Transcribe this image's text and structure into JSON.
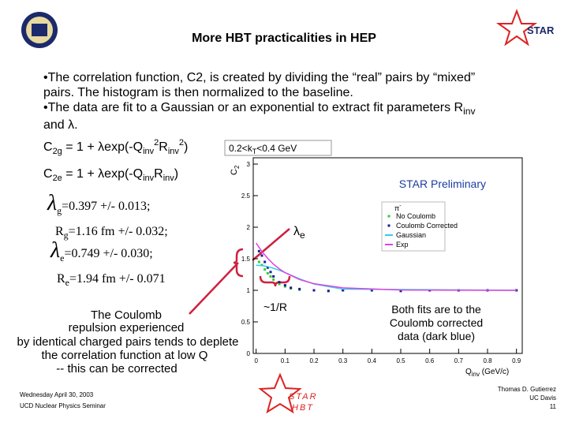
{
  "header": {
    "title": "More HBT practicalities in HEP"
  },
  "bullets": [
    [
      "•The correlation function, C2, is created by dividing the “real” pairs by “mixed”",
      "pairs.  The histogram is then normalized to the baseline."
    ],
    [
      "•The data are fit to a Gaussian or an exponential to extract fit parameters R",
      "inv",
      "and λ."
    ]
  ],
  "formulas": [
    [
      "C",
      "2g",
      " = 1 + λexp(-Q",
      "inv",
      "2",
      "R",
      "inv",
      "2",
      ")"
    ],
    [
      "C",
      "2e",
      " = 1 + λexp(-Q",
      "inv",
      "R",
      "inv",
      ")"
    ]
  ],
  "fit_results": [
    [
      "λ",
      "g",
      "=0.397 +/- 0.013;"
    ],
    [
      "R",
      "g",
      "=1.16 fm +/- 0.032;"
    ],
    [
      "λ",
      "e",
      "=0.749 +/- 0.030;"
    ],
    [
      "R",
      "e",
      "=1.94 fm +/- 0.071"
    ]
  ],
  "plot": {
    "type": "scatter",
    "title": [
      "0.2<k",
      "T",
      "<0.4 GeV"
    ],
    "ylabel": [
      "C",
      "2"
    ],
    "xlabel": [
      "Q",
      "inv",
      " (GeV/c)"
    ],
    "preliminary": "STAR Preliminary",
    "legend_particle": [
      "π",
      "-"
    ],
    "xlim": [
      -0.01,
      0.92
    ],
    "ylim": [
      0,
      3.1
    ],
    "xticks": [
      0,
      0.1,
      0.2,
      0.3,
      0.4,
      0.5,
      0.6,
      0.7,
      0.8,
      0.9
    ],
    "yticks": [
      0,
      0.5,
      1,
      1.5,
      2,
      2.5,
      3
    ],
    "series": [
      {
        "name": "No Coulomb",
        "color": "#33cc33",
        "style": "points",
        "x": [
          0.01,
          0.02,
          0.03,
          0.04,
          0.05,
          0.06,
          0.08,
          0.1,
          0.12,
          0.15,
          0.2,
          0.25,
          0.3,
          0.4,
          0.5,
          0.6,
          0.7,
          0.8,
          0.9
        ],
        "y": [
          1.45,
          1.4,
          1.33,
          1.27,
          1.22,
          1.17,
          1.1,
          1.06,
          1.03,
          1.01,
          1.0,
          0.99,
          1.0,
          1.0,
          0.99,
          1.0,
          1.0,
          1.0,
          1.0
        ]
      },
      {
        "name": "Coulomb Corrected",
        "color": "#1a1aa0",
        "style": "points",
        "x": [
          0.01,
          0.02,
          0.03,
          0.04,
          0.05,
          0.06,
          0.08,
          0.1,
          0.12,
          0.15,
          0.2,
          0.25,
          0.3,
          0.4,
          0.5,
          0.6,
          0.7,
          0.8,
          0.9
        ],
        "y": [
          1.62,
          1.55,
          1.45,
          1.36,
          1.29,
          1.22,
          1.13,
          1.08,
          1.04,
          1.02,
          1.0,
          0.99,
          1.0,
          1.0,
          0.99,
          1.0,
          1.0,
          1.0,
          1.0
        ]
      },
      {
        "name": "Gaussian",
        "color": "#33ccee",
        "style": "line",
        "x": [
          0,
          0.02,
          0.04,
          0.06,
          0.08,
          0.1,
          0.15,
          0.2,
          0.3,
          0.9
        ],
        "y": [
          1.397,
          1.392,
          1.376,
          1.35,
          1.318,
          1.281,
          1.182,
          1.099,
          1.018,
          1.0
        ]
      },
      {
        "name": "Exp",
        "color": "#dd44dd",
        "style": "line",
        "x": [
          0,
          0.02,
          0.04,
          0.06,
          0.08,
          0.1,
          0.15,
          0.2,
          0.3,
          0.5,
          0.9
        ],
        "y": [
          1.749,
          1.615,
          1.506,
          1.415,
          1.341,
          1.28,
          1.171,
          1.105,
          1.039,
          1.005,
          1.0
        ]
      }
    ]
  },
  "annotations": {
    "lambda_e": [
      "λ",
      "e"
    ],
    "one_over_r": "~1/R",
    "coulomb": [
      "The Coulomb",
      "repulsion experienced",
      "by identical charged pairs tends to deplete",
      "the correlation function at low Q",
      "-- this can be corrected"
    ],
    "fits_note": [
      "Both fits are to the",
      "Coulomb corrected",
      "data (dark blue)"
    ]
  },
  "footer": {
    "date": "Wednesday April 30, 2003",
    "seminar": "UCD Nuclear Physics Seminar",
    "author": "Thomas D. Gutierrez",
    "institution": "UC Davis",
    "page": "11"
  },
  "logos": {
    "star": "STAR",
    "star_hbt": [
      "STAR",
      "HBT"
    ]
  }
}
